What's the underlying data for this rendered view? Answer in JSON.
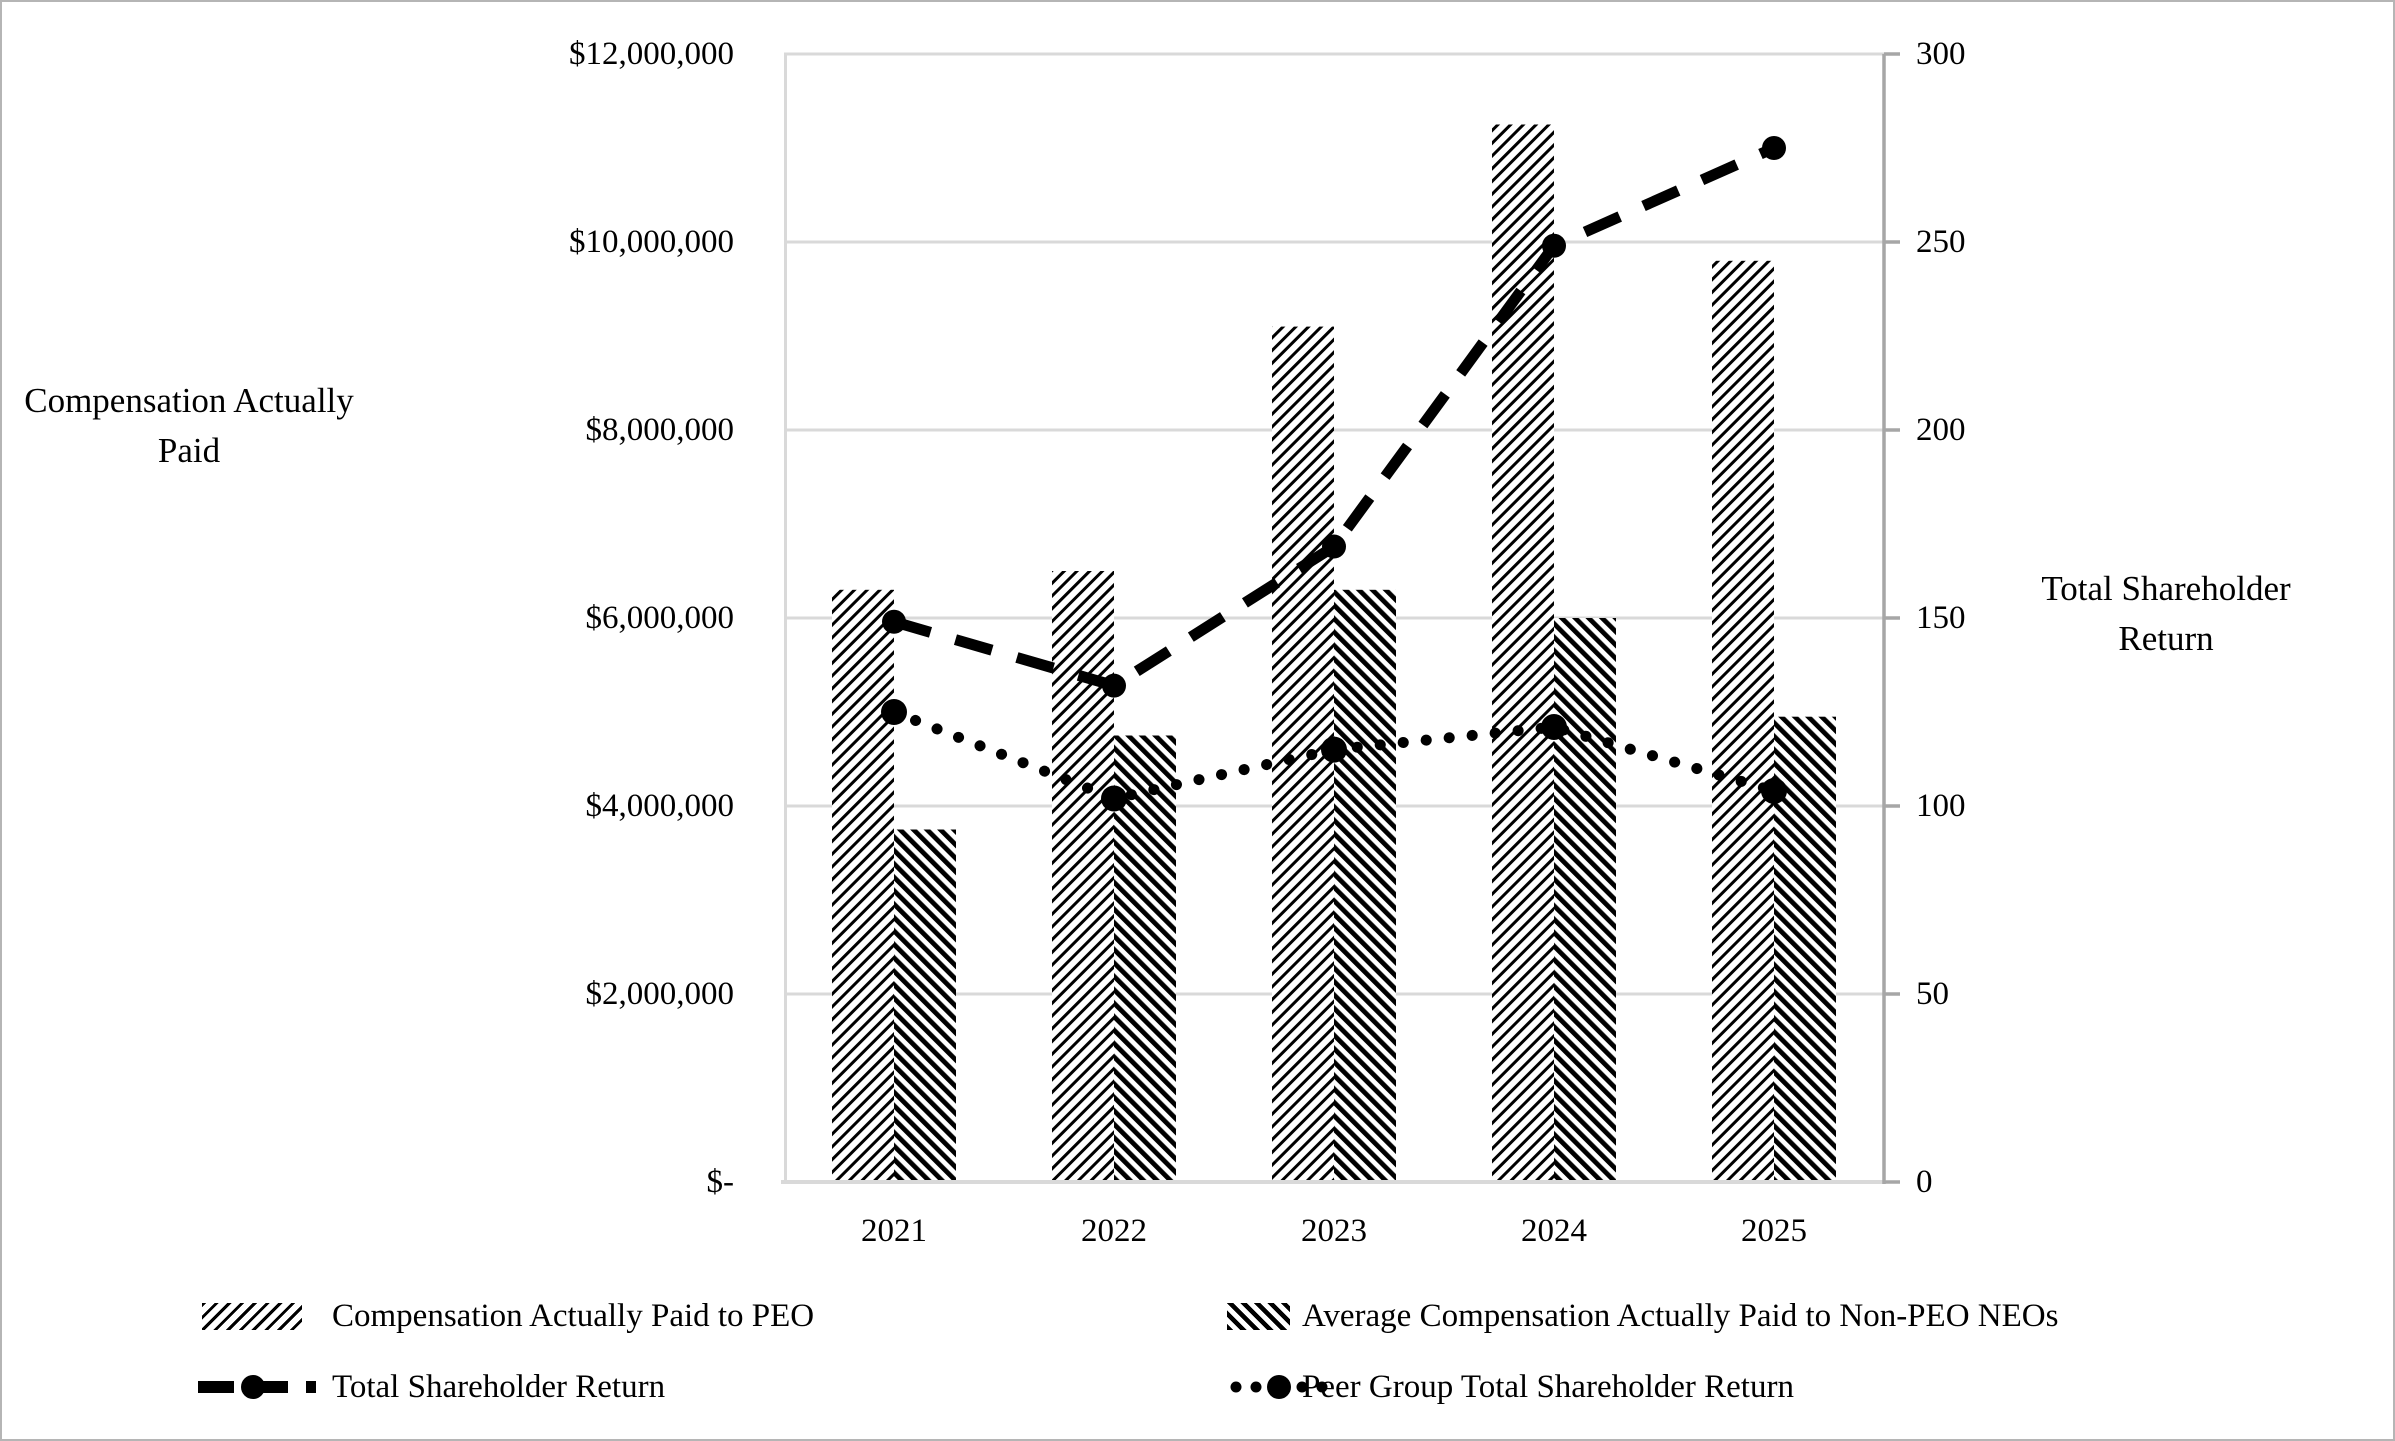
{
  "chart_data": {
    "type": "combo",
    "categories": [
      "2021",
      "2022",
      "2023",
      "2024",
      "2025"
    ],
    "series": [
      {
        "name": "Compensation Actually Paid to PEO",
        "type": "bar",
        "axis": "left",
        "pattern": "diagonal-up-hatch",
        "values": [
          6300000,
          6500000,
          9100000,
          11250000,
          9800000
        ]
      },
      {
        "name": "Average Compensation Actually Paid to Non-PEO NEOs",
        "type": "bar",
        "axis": "left",
        "pattern": "diagonal-down-hatch",
        "values": [
          3750000,
          4750000,
          6300000,
          6000000,
          4950000
        ]
      },
      {
        "name": "Total Shareholder Return",
        "type": "line",
        "style": "dashed",
        "marker": "circle",
        "axis": "right",
        "values": [
          149,
          132,
          169,
          249,
          275
        ]
      },
      {
        "name": "Peer Group Total Shareholder Return",
        "type": "line",
        "style": "dotted",
        "marker": "circle",
        "axis": "right",
        "values": [
          125,
          102,
          115,
          121,
          104
        ]
      }
    ],
    "left_axis": {
      "title_lines": [
        "Compensation Actually",
        "Paid"
      ],
      "tick_labels_top_to_bottom": [
        "$12,000,000",
        "$10,000,000",
        "$8,000,000",
        "$6,000,000",
        "$4,000,000",
        "$2,000,000",
        "$-"
      ],
      "range": [
        0,
        12000000
      ]
    },
    "right_axis": {
      "title_lines": [
        "Total Shareholder",
        "Return"
      ],
      "tick_labels_top_to_bottom": [
        "300",
        "250",
        "200",
        "150",
        "100",
        "50",
        "0"
      ],
      "range": [
        0,
        300
      ]
    },
    "gridlines": true,
    "legend_position": "bottom",
    "colors": {
      "series_color": "#000000",
      "gridline": "#d9d9d9",
      "plot_border": "#d9d9d9",
      "right_axis_line": "#a6a6a6",
      "text": "#000000",
      "background": "#ffffff"
    }
  }
}
